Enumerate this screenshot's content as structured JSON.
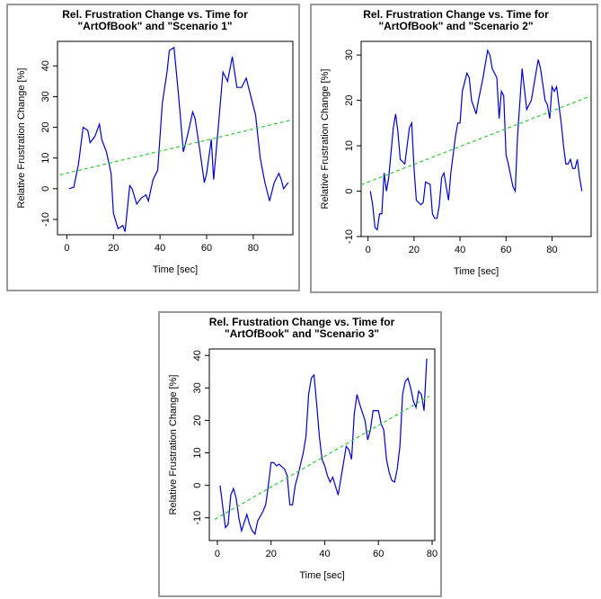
{
  "chart_data": [
    {
      "type": "line",
      "title": [
        "Rel. Frustration Change vs. Time for",
        "\"ArtOfBook\" and \"Scenario 1\""
      ],
      "xlabel": "Time [sec]",
      "ylabel": "Relative Frustration Change [%]",
      "xlim": [
        -4,
        97
      ],
      "ylim": [
        -15,
        48
      ],
      "xticks": [
        0,
        20,
        40,
        60,
        80
      ],
      "yticks": [
        -10,
        0,
        10,
        20,
        30,
        40
      ],
      "series": [
        {
          "color": "#0000cc",
          "dashed": false,
          "x": [
            1,
            3,
            5,
            7,
            9,
            10,
            12,
            14,
            15,
            17,
            19,
            20,
            22,
            24,
            25,
            27,
            28,
            30,
            32,
            34,
            35,
            37,
            39,
            41,
            43,
            44,
            46,
            48,
            50,
            52,
            54,
            55,
            57,
            59,
            60,
            62,
            63,
            65,
            67,
            69,
            71,
            73,
            75,
            77,
            79,
            81,
            83,
            85,
            87,
            89,
            91,
            92,
            93,
            95
          ],
          "values": [
            0,
            0.5,
            8,
            20,
            19,
            15,
            17,
            21,
            16,
            12,
            5,
            -8,
            -13,
            -12,
            -14,
            1,
            0,
            -5,
            -3,
            -2,
            -4,
            3,
            6,
            28,
            38,
            45,
            46,
            30,
            12,
            18,
            25,
            23,
            13,
            2,
            5,
            16,
            3,
            20,
            38,
            35,
            43,
            33,
            33,
            36,
            30,
            24,
            10,
            2,
            -4,
            2,
            5,
            3,
            0,
            2
          ]
        },
        {
          "color": "#33cc33",
          "dashed": true,
          "x": [
            -3,
            97
          ],
          "values": [
            4.5,
            22.5
          ]
        }
      ]
    },
    {
      "type": "line",
      "title": [
        "Rel. Frustration Change vs. Time for",
        "\"ArtOfBook\" and \"Scenario 2\""
      ],
      "xlabel": "Time [sec]",
      "ylabel": "Relative Frustration Change [%]",
      "xlim": [
        -3,
        97
      ],
      "ylim": [
        -10,
        33
      ],
      "xticks": [
        0,
        20,
        40,
        60,
        80
      ],
      "yticks": [
        -10,
        0,
        10,
        20,
        30
      ],
      "series": [
        {
          "color": "#0000cc",
          "dashed": false,
          "x": [
            1,
            2,
            3,
            4,
            5,
            6,
            7,
            8,
            9,
            11,
            12,
            13,
            14,
            16,
            17,
            18,
            19,
            20,
            21,
            23,
            24,
            25,
            27,
            28,
            29,
            30,
            31,
            32,
            33,
            35,
            36,
            38,
            39,
            40,
            41,
            43,
            44,
            45,
            47,
            48,
            50,
            52,
            53,
            54,
            56,
            57,
            58,
            59,
            60,
            61,
            63,
            64,
            65,
            67,
            69,
            70,
            71,
            73,
            74,
            75,
            77,
            78,
            79,
            80,
            81,
            82,
            84,
            85,
            86,
            87,
            88,
            89,
            90,
            91,
            92,
            93
          ],
          "values": [
            0,
            -3,
            -8,
            -8.5,
            -5,
            -5,
            4,
            0,
            3,
            14,
            17,
            13,
            7,
            6,
            10,
            14,
            15,
            5,
            -2,
            -3,
            -2.5,
            2,
            1.5,
            -5,
            -6,
            -6,
            -3,
            3,
            4,
            -2,
            4,
            12,
            15,
            15,
            22,
            26,
            25,
            20,
            17,
            20,
            25,
            31,
            30,
            27,
            25,
            16,
            22,
            21,
            8,
            6,
            1,
            0,
            12,
            27,
            18,
            19,
            20,
            26,
            29,
            27,
            20,
            19,
            16,
            23,
            22,
            23,
            15,
            10,
            6,
            6,
            7,
            5,
            5,
            7,
            3,
            0
          ]
        },
        {
          "color": "#33cc33",
          "dashed": true,
          "x": [
            -3,
            97
          ],
          "values": [
            1.4,
            21
          ]
        }
      ]
    },
    {
      "type": "line",
      "title": [
        "Rel. Frustration Change vs. Time for",
        "\"ArtOfBook\" and \"Scenario 3\""
      ],
      "xlabel": "Time [sec]",
      "ylabel": "Relative Frustration Change [%]",
      "xlim": [
        -3,
        81
      ],
      "ylim": [
        -17,
        42
      ],
      "xticks": [
        0,
        20,
        40,
        60,
        80
      ],
      "yticks": [
        -10,
        0,
        10,
        20,
        30,
        40
      ],
      "series": [
        {
          "color": "#0000cc",
          "dashed": false,
          "x": [
            1,
            3,
            4,
            5,
            6,
            7,
            8,
            9,
            11,
            12,
            13,
            14,
            15,
            17,
            18,
            19,
            20,
            21,
            22,
            23,
            25,
            26,
            27,
            28,
            29,
            30,
            32,
            33,
            34,
            35,
            36,
            37,
            38,
            39,
            40,
            41,
            42,
            43,
            45,
            46,
            47,
            48,
            49,
            50,
            51,
            52,
            53,
            55,
            56,
            57,
            58,
            60,
            61,
            62,
            63,
            64,
            65,
            66,
            67,
            68,
            69,
            70,
            71,
            72,
            73,
            74,
            75,
            76,
            77,
            78
          ],
          "values": [
            0,
            -13,
            -12,
            -3,
            -1,
            -4,
            -10,
            -14,
            -9,
            -12,
            -14,
            -15,
            -11,
            -8,
            -6,
            0,
            7,
            7,
            6,
            6.5,
            5,
            3,
            -6,
            -6,
            0,
            3,
            10,
            15,
            28,
            33,
            34,
            25,
            15,
            8,
            6,
            3,
            1,
            2.5,
            -3,
            2,
            7,
            12,
            11,
            8,
            22,
            28,
            25,
            20,
            14,
            17,
            23,
            23,
            19,
            17,
            8,
            4,
            1.5,
            1,
            5,
            12,
            28,
            32,
            33,
            30,
            26,
            24,
            29,
            28,
            23,
            39
          ]
        },
        {
          "color": "#33cc33",
          "dashed": true,
          "x": [
            -1,
            79
          ],
          "values": [
            -10.5,
            27.5
          ]
        }
      ]
    }
  ]
}
